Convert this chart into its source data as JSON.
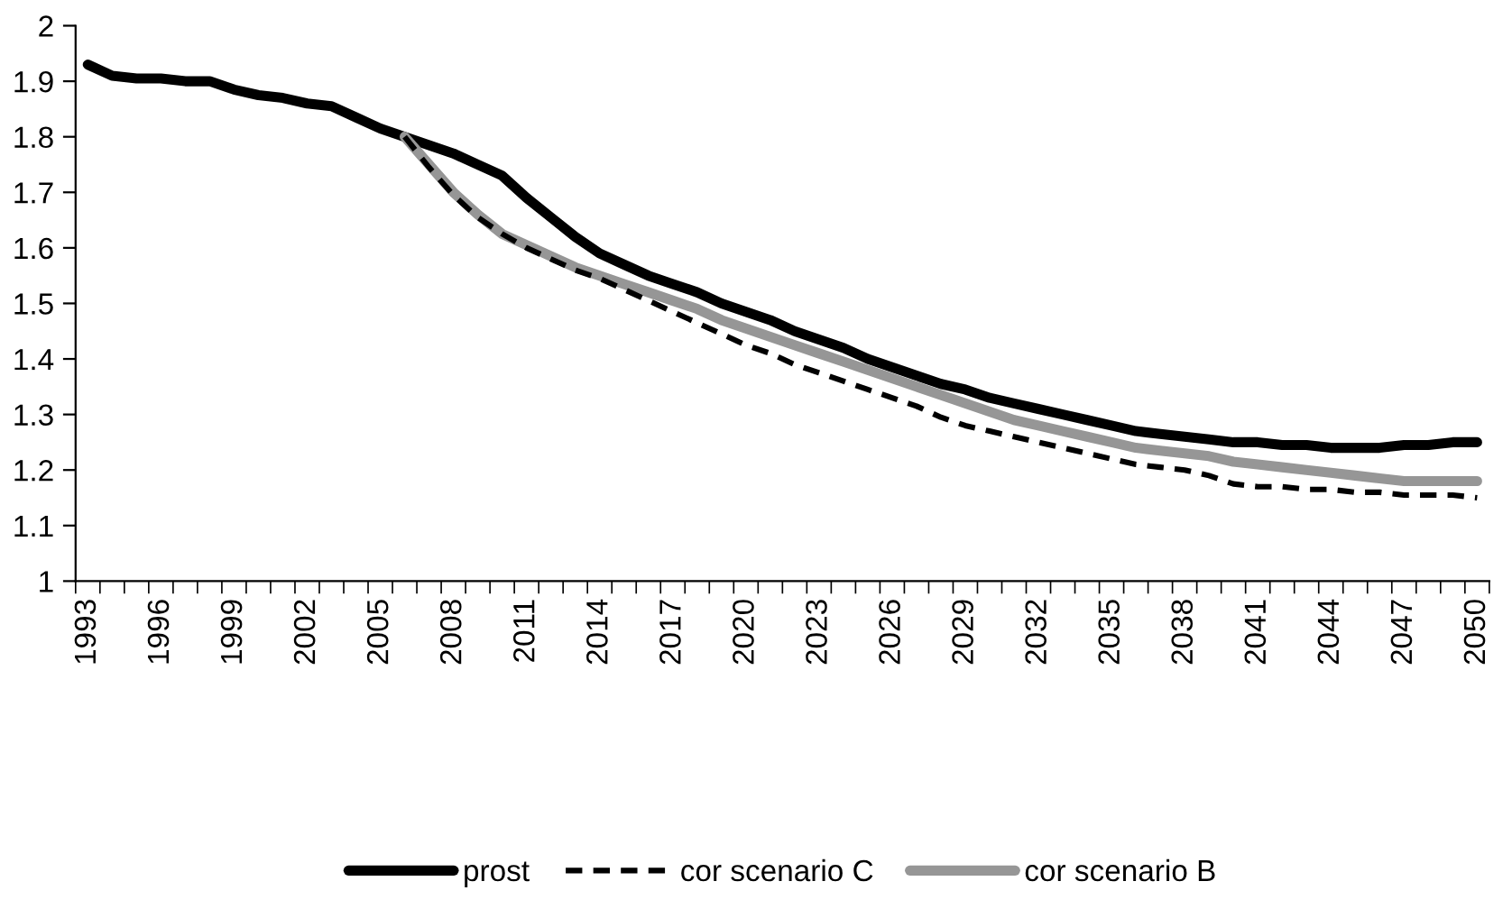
{
  "chart_data": {
    "type": "line",
    "categories": [
      "1993",
      null,
      null,
      "1996",
      null,
      null,
      "1999",
      null,
      null,
      "2002",
      null,
      null,
      "2005",
      null,
      null,
      "2008",
      null,
      null,
      "2011",
      null,
      null,
      "2014",
      null,
      null,
      "2017",
      null,
      null,
      "2020",
      null,
      null,
      "2023",
      null,
      null,
      "2026",
      null,
      null,
      "2029",
      null,
      null,
      "2032",
      null,
      null,
      "2035",
      null,
      null,
      "2038",
      null,
      null,
      "2041",
      null,
      null,
      "2044",
      null,
      null,
      "2047",
      null,
      null,
      "2050"
    ],
    "series": [
      {
        "name": "prost",
        "color": "#000000",
        "line_style": "solid",
        "values": [
          1.93,
          1.91,
          1.905,
          1.905,
          1.9,
          1.9,
          1.885,
          1.875,
          1.87,
          1.86,
          1.855,
          1.835,
          1.815,
          1.8,
          1.785,
          1.77,
          1.75,
          1.73,
          1.69,
          1.655,
          1.62,
          1.59,
          1.57,
          1.55,
          1.535,
          1.52,
          1.5,
          1.485,
          1.47,
          1.45,
          1.435,
          1.42,
          1.4,
          1.385,
          1.37,
          1.355,
          1.345,
          1.33,
          1.32,
          1.31,
          1.3,
          1.29,
          1.28,
          1.27,
          1.265,
          1.26,
          1.255,
          1.25,
          1.25,
          1.245,
          1.245,
          1.24,
          1.24,
          1.24,
          1.245,
          1.245,
          1.25,
          1.25
        ]
      },
      {
        "name": "cor scenario C",
        "color": "#000000",
        "line_style": "dashed",
        "values": [
          null,
          null,
          null,
          null,
          null,
          null,
          null,
          null,
          null,
          null,
          null,
          null,
          null,
          1.8,
          1.745,
          1.695,
          1.655,
          1.625,
          1.6,
          1.58,
          1.56,
          1.545,
          1.525,
          1.505,
          1.485,
          1.465,
          1.445,
          1.425,
          1.41,
          1.39,
          1.375,
          1.36,
          1.345,
          1.33,
          1.315,
          1.295,
          1.28,
          1.27,
          1.26,
          1.25,
          1.24,
          1.23,
          1.22,
          1.21,
          1.205,
          1.2,
          1.19,
          1.175,
          1.17,
          1.17,
          1.165,
          1.165,
          1.16,
          1.16,
          1.155,
          1.155,
          1.155,
          1.15
        ]
      },
      {
        "name": "cor scenario B",
        "color": "#969696",
        "line_style": "solid",
        "values": [
          null,
          null,
          null,
          null,
          null,
          null,
          null,
          null,
          null,
          null,
          null,
          null,
          null,
          1.8,
          1.75,
          1.7,
          1.66,
          1.625,
          1.605,
          1.585,
          1.565,
          1.55,
          1.535,
          1.52,
          1.505,
          1.49,
          1.47,
          1.455,
          1.44,
          1.425,
          1.41,
          1.395,
          1.38,
          1.365,
          1.35,
          1.335,
          1.32,
          1.305,
          1.29,
          1.28,
          1.27,
          1.26,
          1.25,
          1.24,
          1.235,
          1.23,
          1.225,
          1.215,
          1.21,
          1.205,
          1.2,
          1.195,
          1.19,
          1.185,
          1.18,
          1.18,
          1.18,
          1.18
        ]
      }
    ],
    "ylim": [
      1,
      2
    ],
    "yticks": [
      1,
      1.1,
      1.2,
      1.3,
      1.4,
      1.5,
      1.6,
      1.7,
      1.8,
      1.9,
      2
    ],
    "grid": false,
    "legend": "bottom",
    "marker": "none"
  }
}
